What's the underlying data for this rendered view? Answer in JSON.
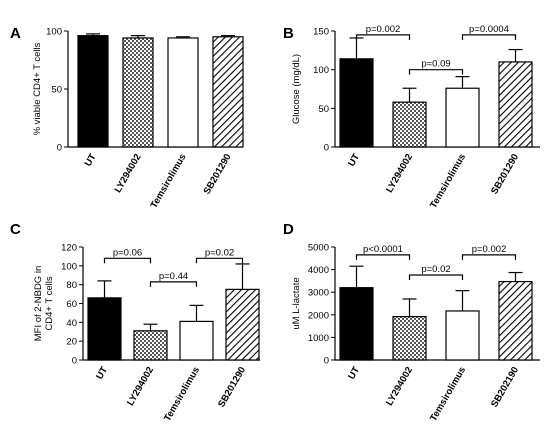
{
  "colors": {
    "ut": "#000000",
    "ly": "checker-pattern",
    "tem": "#ffffff",
    "sb": "diagonal-hatch"
  },
  "chart_data": [
    {
      "panel": "A",
      "type": "bar",
      "ylabel": "% viable CD4+ T cells",
      "categories": [
        "UT",
        "LY294002",
        "Temsirolimus",
        "SB201290"
      ],
      "values": [
        96,
        94,
        94,
        95
      ],
      "errors": [
        1.5,
        2.0,
        1.0,
        1.0
      ],
      "ylim": [
        0,
        100
      ],
      "yticks": [
        0,
        50,
        100
      ],
      "annotations": []
    },
    {
      "panel": "B",
      "type": "bar",
      "ylabel": "Glucose (mg/dL)",
      "categories": [
        "UT",
        "LY294002",
        "Temsirolimus",
        "SB201290"
      ],
      "values": [
        114,
        58,
        76,
        110
      ],
      "errors": [
        27,
        18,
        15,
        16
      ],
      "ylim": [
        0,
        150
      ],
      "yticks": [
        0,
        50,
        100,
        150
      ],
      "annotations": [
        {
          "from": 0,
          "to": 1,
          "level": 145,
          "text": "p=0.002"
        },
        {
          "from": 1,
          "to": 2,
          "level": 100,
          "text": "p=0.09"
        },
        {
          "from": 2,
          "to": 3,
          "level": 145,
          "text": "p=0.0004"
        }
      ]
    },
    {
      "panel": "C",
      "type": "bar",
      "ylabel_lines": [
        "MFI of 2-NBDG in",
        "CD4+ T cells"
      ],
      "categories": [
        "UT",
        "LY294002",
        "Temsirolimus",
        "SB201290"
      ],
      "values": [
        66,
        31,
        41,
        75
      ],
      "errors": [
        18,
        7,
        17,
        27
      ],
      "ylim": [
        0,
        120
      ],
      "yticks": [
        0,
        20,
        40,
        60,
        80,
        100,
        120
      ],
      "annotations": [
        {
          "from": 0,
          "to": 1,
          "level": 108,
          "text": "p=0.06"
        },
        {
          "from": 1,
          "to": 2,
          "level": 83,
          "text": "p=0.44"
        },
        {
          "from": 2,
          "to": 3,
          "level": 108,
          "text": "p=0.02"
        }
      ]
    },
    {
      "panel": "D",
      "type": "bar",
      "ylabel": "uM L-lactate",
      "categories": [
        "UT",
        "LY294002",
        "Temsirolimus",
        "SB202190"
      ],
      "values": [
        3200,
        1920,
        2170,
        3470
      ],
      "errors": [
        950,
        780,
        900,
        400
      ],
      "ylim": [
        0,
        5000
      ],
      "yticks": [
        0,
        1000,
        2000,
        3000,
        4000,
        5000
      ],
      "annotations": [
        {
          "from": 0,
          "to": 1,
          "level": 4650,
          "text": "p<0.0001"
        },
        {
          "from": 1,
          "to": 2,
          "level": 3760,
          "text": "p=0.02"
        },
        {
          "from": 2,
          "to": 3,
          "level": 4650,
          "text": "p=0.002"
        }
      ]
    }
  ]
}
